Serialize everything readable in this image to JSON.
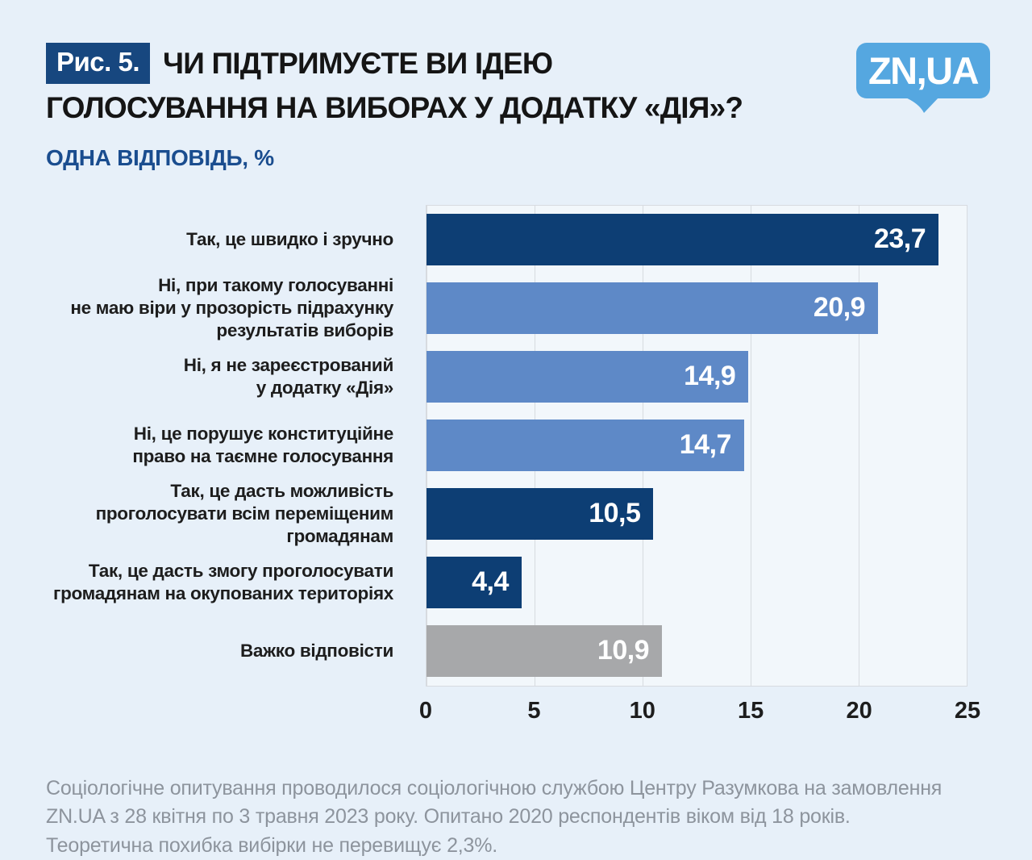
{
  "header": {
    "figure_label": "Рис. 5.",
    "title_line1": "ЧИ ПІДТРИМУЄТЕ ВИ ІДЕЮ",
    "title_line2": "ГОЛОСУВАННЯ НА ВИБОРАХ У ДОДАТКУ «ДІЯ»?",
    "subtitle": "ОДНА ВІДПОВІДЬ, %",
    "logo_text": "ZN,UA"
  },
  "chart_data": {
    "type": "bar",
    "orientation": "horizontal",
    "title": "ЧИ ПІДТРИМУЄТЕ ВИ ІДЕЮ ГОЛОСУВАННЯ НА ВИБОРАХ У ДОДАТКУ «ДІЯ»?",
    "subtitle": "ОДНА ВІДПОВІДЬ, %",
    "unit": "%",
    "xlim": [
      0,
      25
    ],
    "x_ticks": [
      0,
      5,
      10,
      15,
      20,
      25
    ],
    "grid": true,
    "legend": "none",
    "categories": [
      "Так, це швидко і зручно",
      "Ні, при такому голосуванні не маю віри у прозорість підрахунку результатів виборів",
      "Ні, я не зареєстрований у додатку «Дія»",
      "Ні, це порушує конституційне право на таємне голосування",
      "Так, це дасть можливість проголосувати всім переміщеним громадянам",
      "Так, це дасть змогу проголосувати громадянам на окупованих територіях",
      "Важко відповісти"
    ],
    "values": [
      23.7,
      20.9,
      14.9,
      14.7,
      10.5,
      4.4,
      10.9
    ],
    "rows": [
      {
        "label": "Так, це швидко і зручно",
        "value": 23.7,
        "value_label": "23,7",
        "color": "navy"
      },
      {
        "label": "Ні, при такому голосуванні\nне маю віри у прозорість підрахунку\nрезультатів виборів",
        "value": 20.9,
        "value_label": "20,9",
        "color": "blue"
      },
      {
        "label": "Ні, я не зареєстрований\nу додатку «Дія»",
        "value": 14.9,
        "value_label": "14,9",
        "color": "blue"
      },
      {
        "label": "Ні, це порушує конституційне\nправо на таємне голосування",
        "value": 14.7,
        "value_label": "14,7",
        "color": "blue"
      },
      {
        "label": "Так, це дасть можливість\nпроголосувати всім переміщеним\nгромадянам",
        "value": 10.5,
        "value_label": "10,5",
        "color": "navy"
      },
      {
        "label": "Так, це дасть змогу проголосувати\nгромадянам на окупованих територіях",
        "value": 4.4,
        "value_label": "4,4",
        "color": "navy"
      },
      {
        "label": "Важко відповісти",
        "value": 10.9,
        "value_label": "10,9",
        "color": "gray"
      }
    ]
  },
  "colors": {
    "navy": "#0d3e74",
    "blue": "#5e89c7",
    "gray": "#a7a8aa",
    "page_bg": "#e7f0f9",
    "plot_bg": "#f2f7fb",
    "grid_line": "#d7dbe0",
    "figure_box_bg": "#17477f",
    "subtitle_text": "#1a4d8f",
    "logo_bg": "#55a7e0",
    "footer_text": "#8d949d"
  },
  "footer": {
    "text": "Соціологічне опитування проводилося соціологічною  службою Центру Разумкова на замовлення\nZN.UA з 28 квітня по 3 травня 2023 року. Опитано 2020 респондентів віком від 18 років.\nТеоретична похибка вибірки не перевищує 2,3%."
  }
}
